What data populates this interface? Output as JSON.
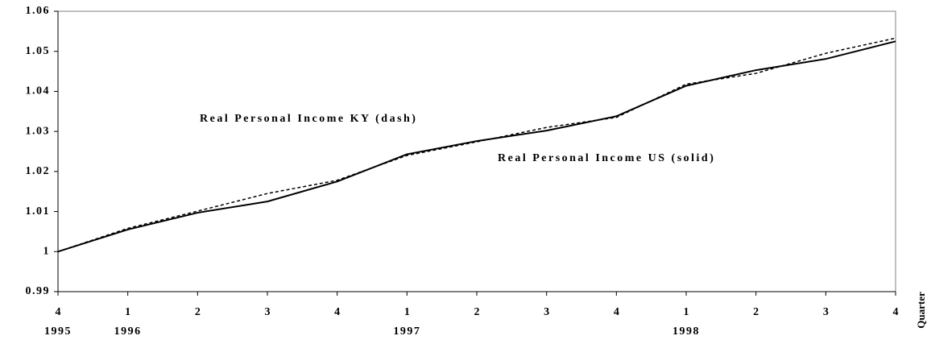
{
  "chart_data": {
    "type": "line",
    "categories": [
      "4",
      "1",
      "2",
      "3",
      "4",
      "1",
      "2",
      "3",
      "4",
      "1",
      "2",
      "3",
      "4"
    ],
    "years": [
      "1995",
      "1996",
      null,
      null,
      null,
      "1997",
      null,
      null,
      null,
      "1998",
      null,
      null,
      null
    ],
    "x_label": "Quarter",
    "ylim": [
      0.99,
      1.06
    ],
    "yticks": [
      0.99,
      1,
      1.01,
      1.02,
      1.03,
      1.04,
      1.05,
      1.06
    ],
    "grid": false,
    "series": [
      {
        "name": "Real Personal Income KY (dash)",
        "color": "#000000",
        "style": "dashed",
        "values": [
          1.0,
          1.0058,
          1.0101,
          1.0145,
          1.0178,
          1.024,
          1.0274,
          1.031,
          1.0335,
          1.0418,
          1.0445,
          1.0495,
          1.0533
        ]
      },
      {
        "name": "Real Personal Income US (solid)",
        "color": "#000000",
        "style": "solid",
        "values": [
          1.0,
          1.0055,
          1.0097,
          1.0125,
          1.0175,
          1.0243,
          1.0276,
          1.0302,
          1.0338,
          1.0414,
          1.0453,
          1.0481,
          1.0525
        ]
      }
    ]
  }
}
